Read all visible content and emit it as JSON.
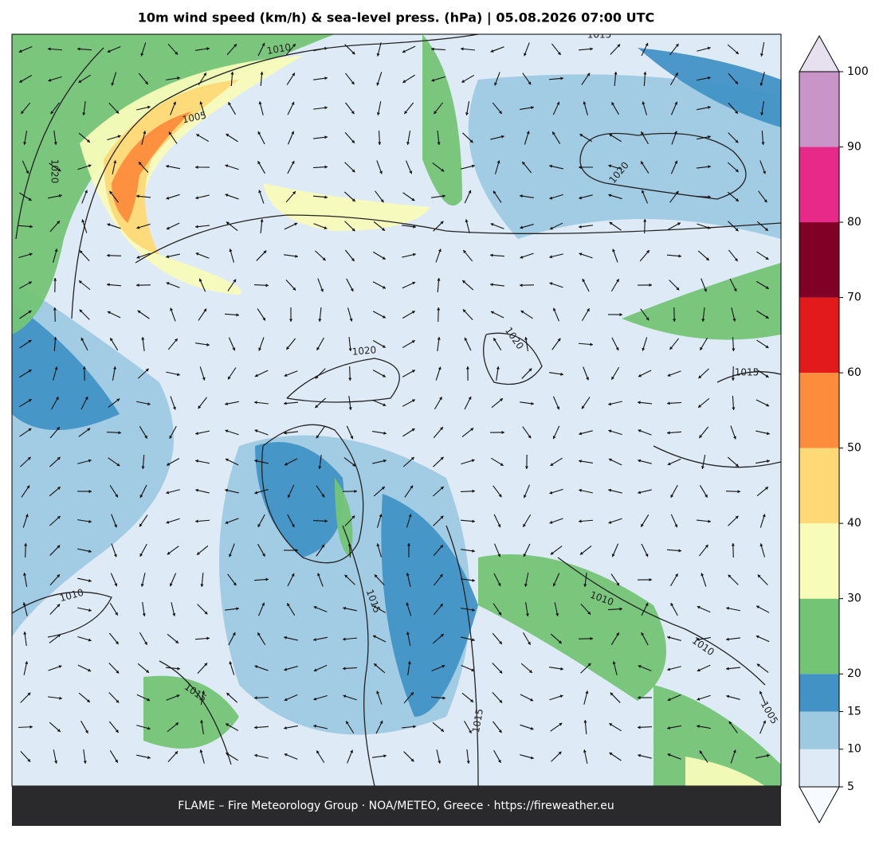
{
  "title": "10m wind speed (km/h) & sea-level press. (hPa)  |  05.08.2026 07:00 UTC",
  "colorbar": {
    "levels": [
      5,
      10,
      15,
      20,
      30,
      40,
      50,
      60,
      70,
      80,
      90,
      100
    ],
    "colors": [
      "#deebf7",
      "#9ecae1",
      "#4292c6",
      "#74c476",
      "#f7fcb9",
      "#fed976",
      "#fd8d3c",
      "#e31a1c",
      "#800026",
      "#e7298a",
      "#c994c7"
    ],
    "under_color": "#f7fbff",
    "over_color": "#e7e1ef"
  },
  "contour_labels": [
    1015,
    1010,
    1005,
    1020,
    1020,
    1020,
    1020,
    1015,
    1010,
    1015,
    1010,
    1010,
    1015,
    1015,
    1005
  ],
  "footer": "FLAME – Fire Meteorology Group · NOA/METEO, Greece · https://fireweather.eu"
}
